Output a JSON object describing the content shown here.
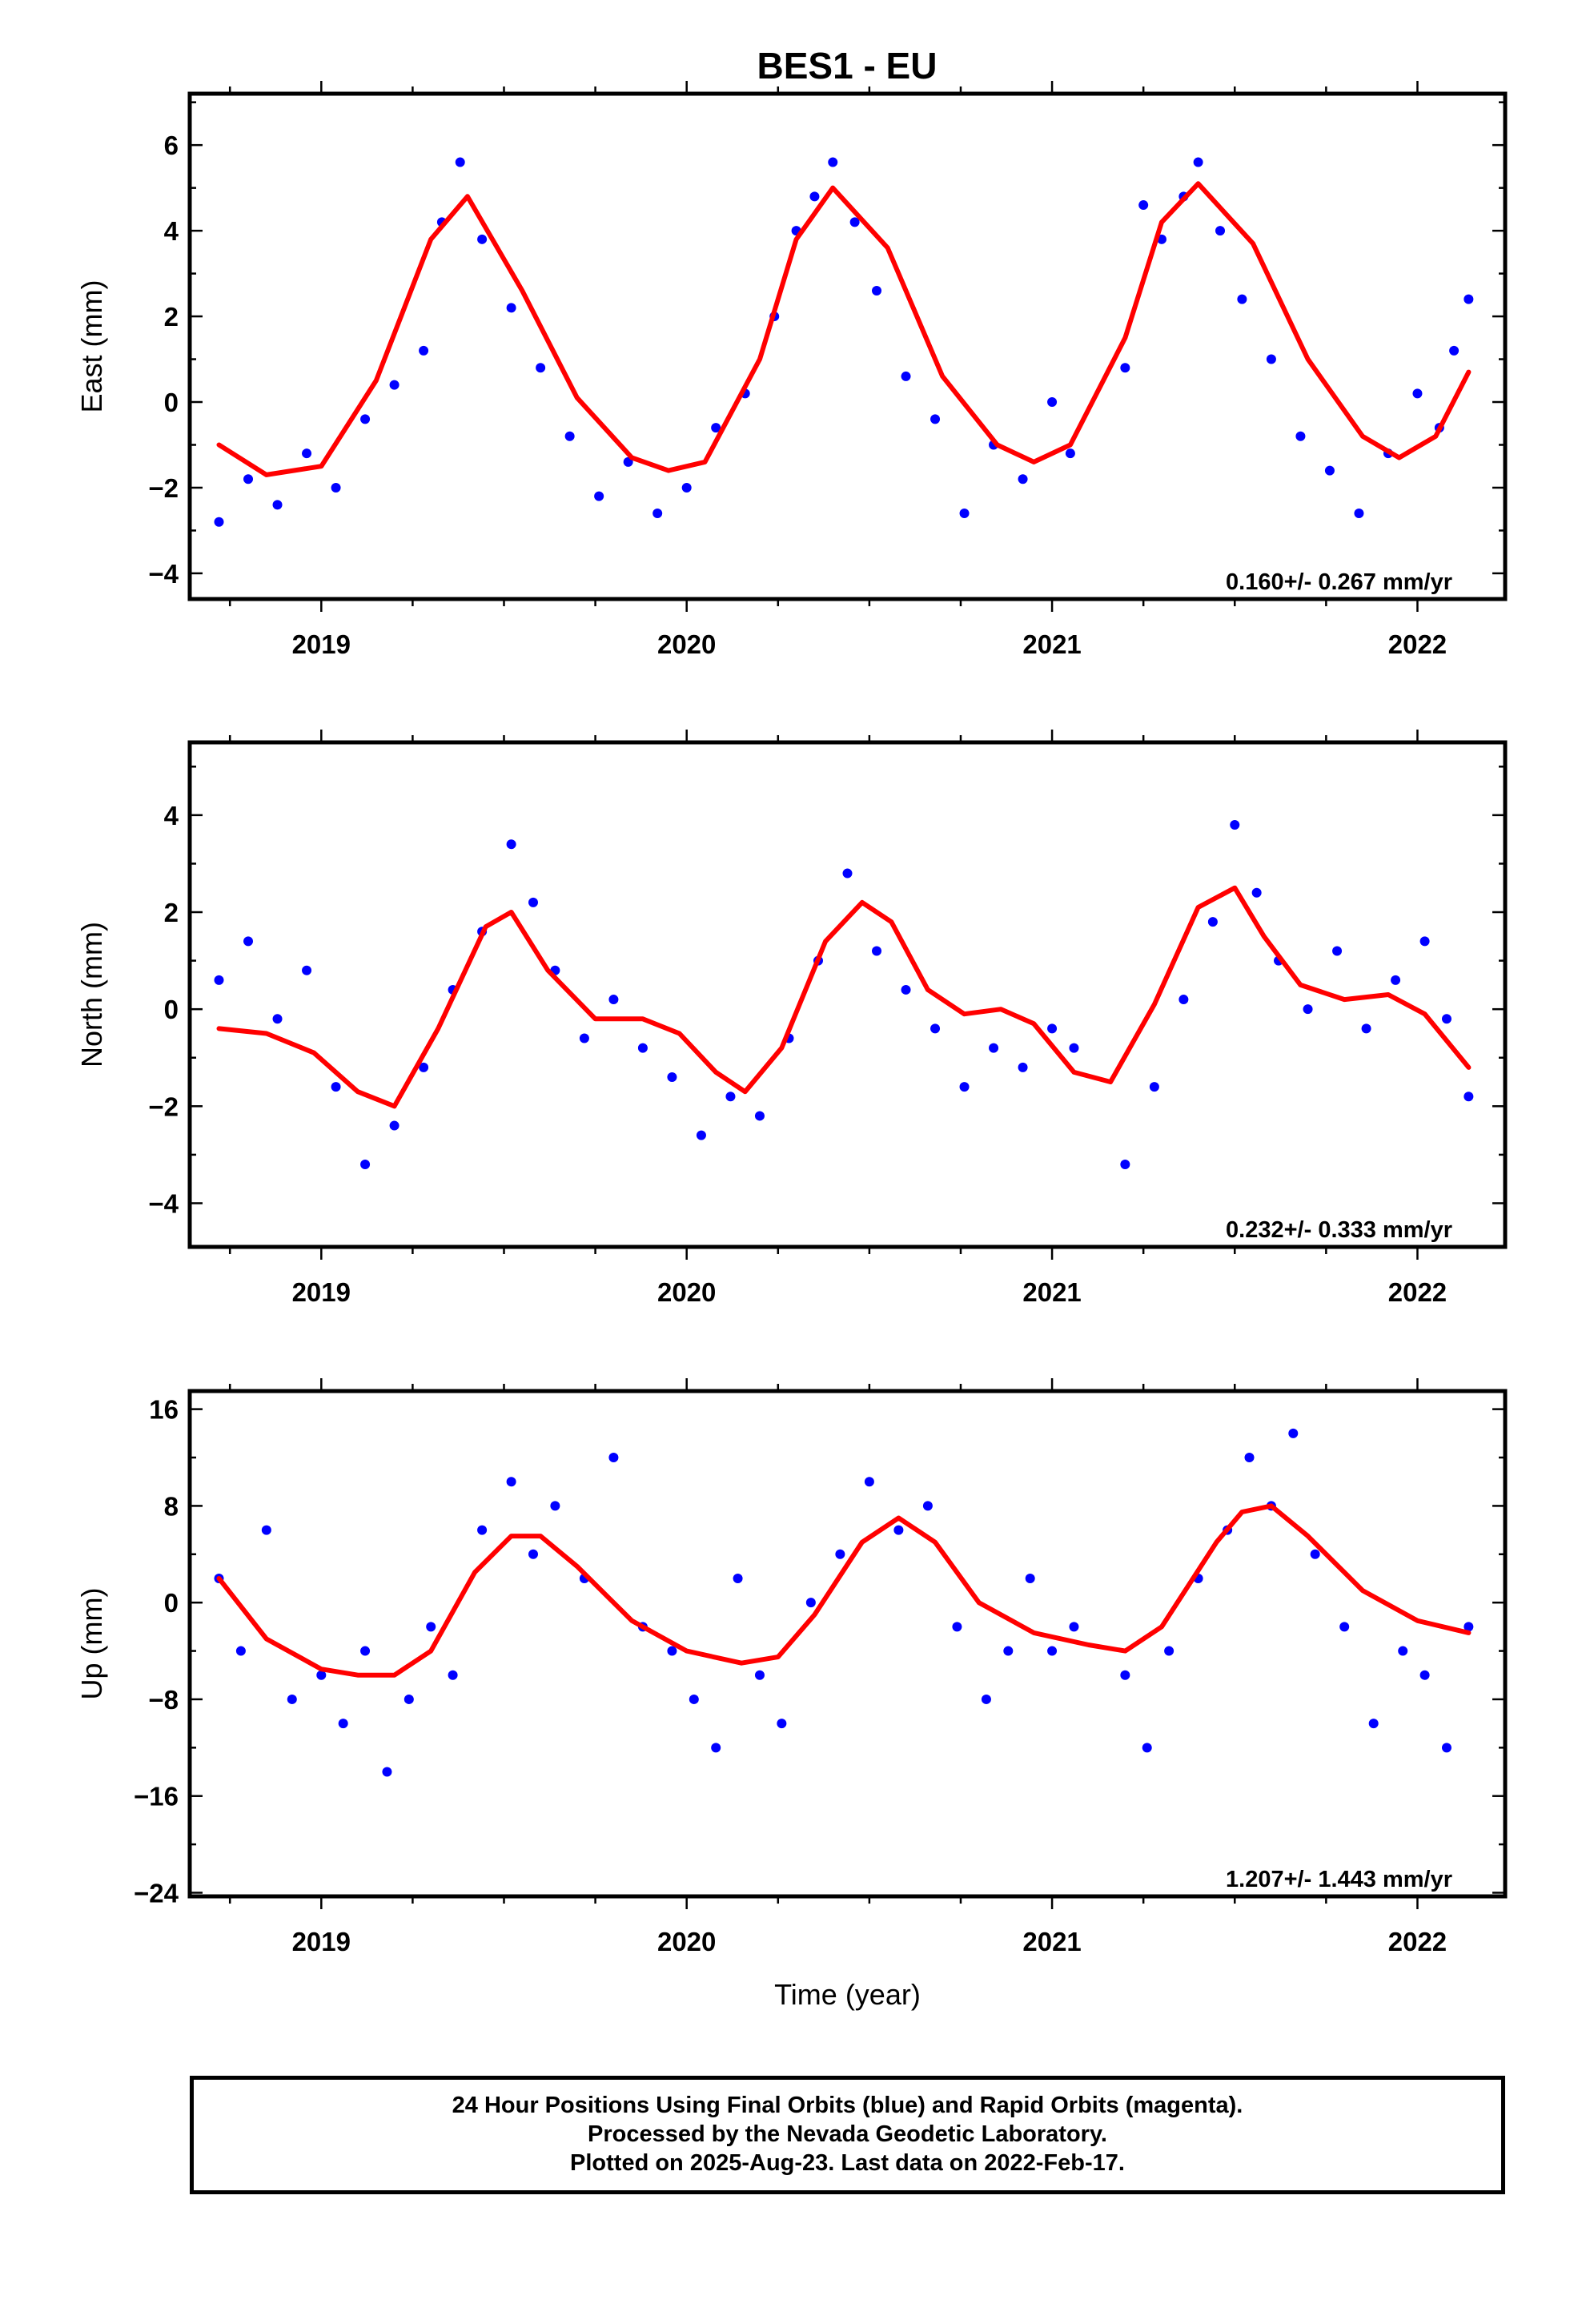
{
  "title": "BES1 - EU",
  "colors": {
    "final_orbits": "#0000ff",
    "fit": "#ff0000",
    "frame": "#000000"
  },
  "footer": {
    "line1": "24 Hour Positions Using Final Orbits (blue) and Rapid Orbits (magenta).",
    "line2": "Processed by the Nevada Geodetic Laboratory.",
    "line3": "Plotted on 2025-Aug-23. Last data on 2022-Feb-17."
  },
  "chart_data": [
    {
      "type": "scatter",
      "ylabel": "East (mm)",
      "xlabel": "",
      "xlim": [
        2018.64,
        2022.24
      ],
      "ylim": [
        -4.6,
        7.2
      ],
      "xticks": [
        "2019",
        "2020",
        "2021",
        "2022"
      ],
      "yticks": [
        "−4",
        "−2",
        "0",
        "2",
        "4",
        "6"
      ],
      "ytick_values": [
        -4,
        -2,
        0,
        2,
        4,
        6
      ],
      "rate": "0.160+/- 0.267 mm/yr",
      "series": [
        {
          "style": "points",
          "x": [
            2018.72,
            2018.8,
            2018.88,
            2018.96,
            2019.04,
            2019.12,
            2019.2,
            2019.28,
            2019.33,
            2019.38,
            2019.44,
            2019.52,
            2019.6,
            2019.68,
            2019.76,
            2019.84,
            2019.92,
            2020.0,
            2020.08,
            2020.16,
            2020.24,
            2020.3,
            2020.35,
            2020.4,
            2020.46,
            2020.52,
            2020.6,
            2020.68,
            2020.76,
            2020.84,
            2020.92,
            2021.0,
            2021.05,
            2021.2,
            2021.25,
            2021.3,
            2021.36,
            2021.4,
            2021.46,
            2021.52,
            2021.6,
            2021.68,
            2021.76,
            2021.84,
            2021.92,
            2022.0,
            2022.06,
            2022.1,
            2022.14
          ],
          "y": [
            -2.8,
            -1.8,
            -2.4,
            -1.2,
            -2.0,
            -0.4,
            0.4,
            1.2,
            4.2,
            5.6,
            3.8,
            2.2,
            0.8,
            -0.8,
            -2.2,
            -1.4,
            -2.6,
            -2.0,
            -0.6,
            0.2,
            2.0,
            4.0,
            4.8,
            5.6,
            4.2,
            2.6,
            0.6,
            -0.4,
            -2.6,
            -1.0,
            -1.8,
            0.0,
            -1.2,
            0.8,
            4.6,
            3.8,
            4.8,
            5.6,
            4.0,
            2.4,
            1.0,
            -0.8,
            -1.6,
            -2.6,
            -1.2,
            0.2,
            -0.6,
            1.2,
            2.4
          ]
        },
        {
          "style": "fit-line",
          "x": [
            2018.72,
            2018.85,
            2019.0,
            2019.15,
            2019.3,
            2019.4,
            2019.55,
            2019.7,
            2019.85,
            2019.95,
            2020.05,
            2020.2,
            2020.3,
            2020.4,
            2020.55,
            2020.7,
            2020.85,
            2020.95,
            2021.05,
            2021.2,
            2021.3,
            2021.4,
            2021.55,
            2021.7,
            2021.85,
            2021.95,
            2022.05,
            2022.14
          ],
          "y": [
            -1.0,
            -1.7,
            -1.5,
            0.5,
            3.8,
            4.8,
            2.6,
            0.1,
            -1.3,
            -1.6,
            -1.4,
            1.0,
            3.8,
            5.0,
            3.6,
            0.6,
            -1.0,
            -1.4,
            -1.0,
            1.5,
            4.2,
            5.1,
            3.7,
            1.0,
            -0.8,
            -1.3,
            -0.8,
            0.7
          ]
        }
      ]
    },
    {
      "type": "scatter",
      "ylabel": "North (mm)",
      "xlabel": "",
      "xlim": [
        2018.64,
        2022.24
      ],
      "ylim": [
        -4.9,
        5.5
      ],
      "xticks": [
        "2019",
        "2020",
        "2021",
        "2022"
      ],
      "yticks": [
        "−4",
        "−2",
        "0",
        "2",
        "4"
      ],
      "ytick_values": [
        -4,
        -2,
        0,
        2,
        4
      ],
      "rate": "0.232+/- 0.333 mm/yr",
      "series": [
        {
          "style": "points",
          "x": [
            2018.72,
            2018.8,
            2018.88,
            2018.96,
            2019.04,
            2019.12,
            2019.2,
            2019.28,
            2019.36,
            2019.44,
            2019.52,
            2019.58,
            2019.64,
            2019.72,
            2019.8,
            2019.88,
            2019.96,
            2020.04,
            2020.12,
            2020.2,
            2020.28,
            2020.36,
            2020.44,
            2020.52,
            2020.6,
            2020.68,
            2020.76,
            2020.84,
            2020.92,
            2021.0,
            2021.06,
            2021.2,
            2021.28,
            2021.36,
            2021.44,
            2021.5,
            2021.56,
            2021.62,
            2021.7,
            2021.78,
            2021.86,
            2021.94,
            2022.02,
            2022.08,
            2022.14
          ],
          "y": [
            0.6,
            1.4,
            -0.2,
            0.8,
            -1.6,
            -3.2,
            -2.4,
            -1.2,
            0.4,
            1.6,
            3.4,
            2.2,
            0.8,
            -0.6,
            0.2,
            -0.8,
            -1.4,
            -2.6,
            -1.8,
            -2.2,
            -0.6,
            1.0,
            2.8,
            1.2,
            0.4,
            -0.4,
            -1.6,
            -0.8,
            -1.2,
            -0.4,
            -0.8,
            -3.2,
            -1.6,
            0.2,
            1.8,
            3.8,
            2.4,
            1.0,
            0.0,
            1.2,
            -0.4,
            0.6,
            1.4,
            -0.2,
            -1.8
          ]
        },
        {
          "style": "fit-line",
          "x": [
            2018.72,
            2018.85,
            2018.98,
            2019.1,
            2019.2,
            2019.32,
            2019.45,
            2019.52,
            2019.62,
            2019.75,
            2019.88,
            2019.98,
            2020.08,
            2020.16,
            2020.26,
            2020.38,
            2020.48,
            2020.56,
            2020.66,
            2020.76,
            2020.86,
            2020.95,
            2021.06,
            2021.16,
            2021.28,
            2021.4,
            2021.5,
            2021.58,
            2021.68,
            2021.8,
            2021.92,
            2022.02,
            2022.14
          ],
          "y": [
            -0.4,
            -0.5,
            -0.9,
            -1.7,
            -2.0,
            -0.4,
            1.7,
            2.0,
            0.8,
            -0.2,
            -0.2,
            -0.5,
            -1.3,
            -1.7,
            -0.8,
            1.4,
            2.2,
            1.8,
            0.4,
            -0.1,
            0.0,
            -0.3,
            -1.3,
            -1.5,
            0.1,
            2.1,
            2.5,
            1.5,
            0.5,
            0.2,
            0.3,
            -0.1,
            -1.2
          ]
        }
      ]
    },
    {
      "type": "scatter",
      "ylabel": "Up (mm)",
      "xlabel": "Time (year)",
      "xlim": [
        2018.64,
        2022.24
      ],
      "ylim": [
        -24.3,
        17.5
      ],
      "xticks": [
        "2019",
        "2020",
        "2021",
        "2022"
      ],
      "yticks": [
        "−24",
        "−16",
        "−8",
        "0",
        "8",
        "16"
      ],
      "ytick_values": [
        -24,
        -16,
        -8,
        0,
        8,
        16
      ],
      "rate": "1.207+/- 1.443 mm/yr",
      "series": [
        {
          "style": "points",
          "x": [
            2018.72,
            2018.78,
            2018.85,
            2018.92,
            2019.0,
            2019.06,
            2019.12,
            2019.18,
            2019.24,
            2019.3,
            2019.36,
            2019.44,
            2019.52,
            2019.58,
            2019.64,
            2019.72,
            2019.8,
            2019.88,
            2019.96,
            2020.02,
            2020.08,
            2020.14,
            2020.2,
            2020.26,
            2020.34,
            2020.42,
            2020.5,
            2020.58,
            2020.66,
            2020.74,
            2020.82,
            2020.88,
            2020.94,
            2021.0,
            2021.06,
            2021.2,
            2021.26,
            2021.32,
            2021.4,
            2021.48,
            2021.54,
            2021.6,
            2021.66,
            2021.72,
            2021.8,
            2021.88,
            2021.96,
            2022.02,
            2022.08,
            2022.14
          ],
          "y": [
            2.0,
            -4.0,
            6.0,
            -8.0,
            -6.0,
            -10.0,
            -4.0,
            -14.0,
            -8.0,
            -2.0,
            -6.0,
            6.0,
            10.0,
            4.0,
            8.0,
            2.0,
            12.0,
            -2.0,
            -4.0,
            -8.0,
            -12.0,
            2.0,
            -6.0,
            -10.0,
            0.0,
            4.0,
            10.0,
            6.0,
            8.0,
            -2.0,
            -8.0,
            -4.0,
            2.0,
            -4.0,
            -2.0,
            -6.0,
            -12.0,
            -4.0,
            2.0,
            6.0,
            12.0,
            8.0,
            14.0,
            4.0,
            -2.0,
            -10.0,
            -4.0,
            -6.0,
            -12.0,
            -2.0
          ]
        },
        {
          "style": "fit-line",
          "x": [
            2018.72,
            2018.85,
            2019.0,
            2019.1,
            2019.2,
            2019.3,
            2019.42,
            2019.52,
            2019.6,
            2019.7,
            2019.85,
            2020.0,
            2020.15,
            2020.25,
            2020.35,
            2020.48,
            2020.58,
            2020.68,
            2020.8,
            2020.95,
            2021.1,
            2021.2,
            2021.3,
            2021.45,
            2021.52,
            2021.6,
            2021.7,
            2021.85,
            2022.0,
            2022.14
          ],
          "y": [
            2.0,
            -3.0,
            -5.5,
            -6.0,
            -6.0,
            -4.0,
            2.5,
            5.5,
            5.5,
            3.0,
            -1.5,
            -4.0,
            -5.0,
            -4.5,
            -1.0,
            5.0,
            7.0,
            5.0,
            0.0,
            -2.5,
            -3.5,
            -4.0,
            -2.0,
            5.0,
            7.5,
            8.0,
            5.5,
            1.0,
            -1.5,
            -2.5
          ]
        }
      ]
    }
  ]
}
